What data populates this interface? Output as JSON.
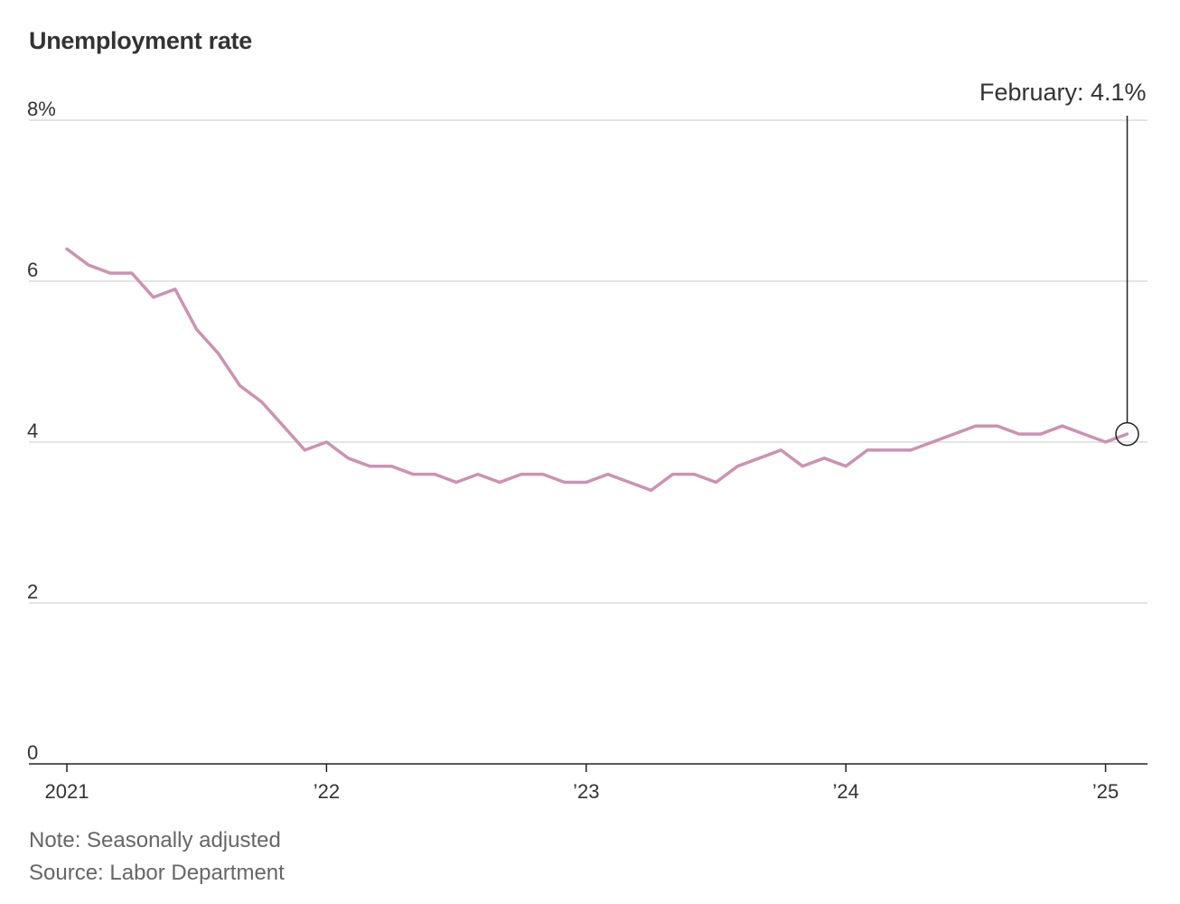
{
  "title": "Unemployment rate",
  "note": "Note: Seasonally adjusted",
  "source": "Source: Labor Department",
  "chart_data": {
    "type": "line",
    "title": "Unemployment rate",
    "xlabel": "",
    "ylabel": "",
    "ylim": [
      0,
      8
    ],
    "y_ticks": [
      {
        "value": 8,
        "label": "8%"
      },
      {
        "value": 6,
        "label": "6"
      },
      {
        "value": 4,
        "label": "4"
      },
      {
        "value": 2,
        "label": "2"
      },
      {
        "value": 0,
        "label": "0"
      }
    ],
    "x_ticks": [
      {
        "value": "2021-01",
        "label": "2021"
      },
      {
        "value": "2022-01",
        "label": "’22"
      },
      {
        "value": "2023-01",
        "label": "’23"
      },
      {
        "value": "2024-01",
        "label": "’24"
      },
      {
        "value": "2025-01",
        "label": "’25"
      }
    ],
    "grid": true,
    "line_color": "#cc92b1",
    "series": [
      {
        "x": [
          "2021-01",
          "2021-02",
          "2021-03",
          "2021-04",
          "2021-05",
          "2021-06",
          "2021-07",
          "2021-08",
          "2021-09",
          "2021-10",
          "2021-11",
          "2021-12",
          "2022-01",
          "2022-02",
          "2022-03",
          "2022-04",
          "2022-05",
          "2022-06",
          "2022-07",
          "2022-08",
          "2022-09",
          "2022-10",
          "2022-11",
          "2022-12",
          "2023-01",
          "2023-02",
          "2023-03",
          "2023-04",
          "2023-05",
          "2023-06",
          "2023-07",
          "2023-08",
          "2023-09",
          "2023-10",
          "2023-11",
          "2023-12",
          "2024-01",
          "2024-02",
          "2024-03",
          "2024-04",
          "2024-05",
          "2024-06",
          "2024-07",
          "2024-08",
          "2024-09",
          "2024-10",
          "2024-11",
          "2024-12",
          "2025-01",
          "2025-02"
        ],
        "values": [
          6.4,
          6.2,
          6.1,
          6.1,
          5.8,
          5.9,
          5.4,
          5.1,
          4.7,
          4.5,
          4.2,
          3.9,
          4.0,
          3.8,
          3.7,
          3.7,
          3.6,
          3.6,
          3.5,
          3.6,
          3.5,
          3.6,
          3.6,
          3.5,
          3.5,
          3.6,
          3.5,
          3.4,
          3.6,
          3.6,
          3.5,
          3.7,
          3.8,
          3.9,
          3.7,
          3.8,
          3.7,
          3.9,
          3.9,
          3.9,
          4.0,
          4.1,
          4.2,
          4.2,
          4.1,
          4.1,
          4.2,
          4.1,
          4.0,
          4.1
        ]
      }
    ],
    "annotation": {
      "x": "2025-02",
      "value": 4.1,
      "label": "February: 4.1%"
    }
  }
}
